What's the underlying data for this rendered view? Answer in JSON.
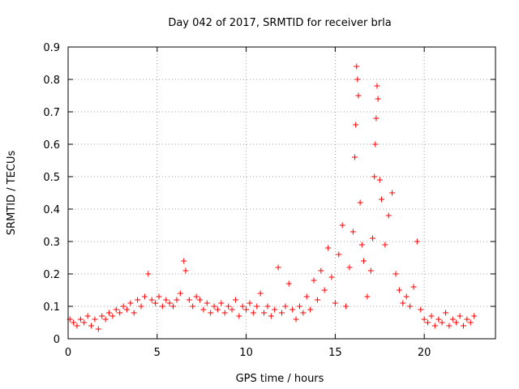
{
  "chart_data": {
    "type": "scatter",
    "title": "Day 042 of 2017, SRMTID for receiver brla",
    "xlabel": "GPS time / hours",
    "ylabel": "SRMTID / TECUs",
    "xlim": [
      0,
      24
    ],
    "ylim": [
      0,
      0.9
    ],
    "xticks": [
      0,
      5,
      10,
      15,
      20
    ],
    "yticks": [
      0,
      0.1,
      0.2,
      0.3,
      0.4,
      0.5,
      0.6,
      0.7,
      0.8,
      0.9
    ],
    "xtick_labels": [
      "0",
      "5",
      "10",
      "15",
      "20"
    ],
    "ytick_labels": [
      "0",
      "0.1",
      "0.2",
      "0.3",
      "0.4",
      "0.5",
      "0.6",
      "0.7",
      "0.8",
      "0.9"
    ],
    "grid": true,
    "marker": "+",
    "color": "#ff0000",
    "series": [
      {
        "name": "SRMTID",
        "points": [
          [
            0.1,
            0.06
          ],
          [
            0.3,
            0.05
          ],
          [
            0.5,
            0.04
          ],
          [
            0.7,
            0.06
          ],
          [
            0.9,
            0.05
          ],
          [
            1.1,
            0.07
          ],
          [
            1.3,
            0.04
          ],
          [
            1.5,
            0.06
          ],
          [
            1.7,
            0.03
          ],
          [
            1.9,
            0.07
          ],
          [
            2.1,
            0.06
          ],
          [
            2.3,
            0.08
          ],
          [
            2.5,
            0.07
          ],
          [
            2.7,
            0.09
          ],
          [
            2.9,
            0.08
          ],
          [
            3.1,
            0.1
          ],
          [
            3.3,
            0.09
          ],
          [
            3.5,
            0.11
          ],
          [
            3.7,
            0.08
          ],
          [
            3.9,
            0.12
          ],
          [
            4.1,
            0.1
          ],
          [
            4.3,
            0.13
          ],
          [
            4.5,
            0.2
          ],
          [
            4.7,
            0.12
          ],
          [
            4.9,
            0.11
          ],
          [
            5.1,
            0.13
          ],
          [
            5.3,
            0.1
          ],
          [
            5.5,
            0.12
          ],
          [
            5.7,
            0.11
          ],
          [
            5.9,
            0.1
          ],
          [
            6.1,
            0.12
          ],
          [
            6.3,
            0.14
          ],
          [
            6.5,
            0.24
          ],
          [
            6.6,
            0.21
          ],
          [
            6.8,
            0.12
          ],
          [
            7.0,
            0.1
          ],
          [
            7.2,
            0.13
          ],
          [
            7.4,
            0.12
          ],
          [
            7.6,
            0.09
          ],
          [
            7.8,
            0.11
          ],
          [
            8.0,
            0.08
          ],
          [
            8.2,
            0.1
          ],
          [
            8.4,
            0.09
          ],
          [
            8.6,
            0.11
          ],
          [
            8.8,
            0.08
          ],
          [
            9.0,
            0.1
          ],
          [
            9.2,
            0.09
          ],
          [
            9.4,
            0.12
          ],
          [
            9.6,
            0.07
          ],
          [
            9.8,
            0.1
          ],
          [
            10.0,
            0.09
          ],
          [
            10.2,
            0.11
          ],
          [
            10.4,
            0.08
          ],
          [
            10.6,
            0.1
          ],
          [
            10.8,
            0.14
          ],
          [
            11.0,
            0.08
          ],
          [
            11.2,
            0.1
          ],
          [
            11.4,
            0.07
          ],
          [
            11.6,
            0.09
          ],
          [
            11.8,
            0.22
          ],
          [
            12.0,
            0.08
          ],
          [
            12.2,
            0.1
          ],
          [
            12.4,
            0.17
          ],
          [
            12.6,
            0.09
          ],
          [
            12.8,
            0.06
          ],
          [
            13.0,
            0.1
          ],
          [
            13.2,
            0.08
          ],
          [
            13.4,
            0.13
          ],
          [
            13.6,
            0.09
          ],
          [
            13.8,
            0.18
          ],
          [
            14.0,
            0.12
          ],
          [
            14.2,
            0.21
          ],
          [
            14.4,
            0.15
          ],
          [
            14.6,
            0.28
          ],
          [
            14.8,
            0.19
          ],
          [
            15.0,
            0.11
          ],
          [
            15.2,
            0.26
          ],
          [
            15.4,
            0.35
          ],
          [
            15.6,
            0.1
          ],
          [
            15.8,
            0.22
          ],
          [
            16.0,
            0.33
          ],
          [
            16.1,
            0.56
          ],
          [
            16.15,
            0.66
          ],
          [
            16.2,
            0.84
          ],
          [
            16.25,
            0.8
          ],
          [
            16.3,
            0.75
          ],
          [
            16.4,
            0.42
          ],
          [
            16.5,
            0.29
          ],
          [
            16.6,
            0.24
          ],
          [
            16.8,
            0.13
          ],
          [
            17.0,
            0.21
          ],
          [
            17.1,
            0.31
          ],
          [
            17.2,
            0.5
          ],
          [
            17.25,
            0.6
          ],
          [
            17.3,
            0.68
          ],
          [
            17.35,
            0.78
          ],
          [
            17.4,
            0.74
          ],
          [
            17.5,
            0.49
          ],
          [
            17.6,
            0.43
          ],
          [
            17.8,
            0.29
          ],
          [
            18.0,
            0.38
          ],
          [
            18.2,
            0.45
          ],
          [
            18.4,
            0.2
          ],
          [
            18.6,
            0.15
          ],
          [
            18.8,
            0.11
          ],
          [
            19.0,
            0.13
          ],
          [
            19.2,
            0.1
          ],
          [
            19.4,
            0.16
          ],
          [
            19.6,
            0.3
          ],
          [
            19.8,
            0.09
          ],
          [
            20.0,
            0.06
          ],
          [
            20.2,
            0.05
          ],
          [
            20.4,
            0.07
          ],
          [
            20.6,
            0.04
          ],
          [
            20.8,
            0.06
          ],
          [
            21.0,
            0.05
          ],
          [
            21.2,
            0.08
          ],
          [
            21.4,
            0.04
          ],
          [
            21.6,
            0.06
          ],
          [
            21.8,
            0.05
          ],
          [
            22.0,
            0.07
          ],
          [
            22.2,
            0.04
          ],
          [
            22.4,
            0.06
          ],
          [
            22.6,
            0.05
          ],
          [
            22.8,
            0.07
          ]
        ]
      }
    ]
  }
}
